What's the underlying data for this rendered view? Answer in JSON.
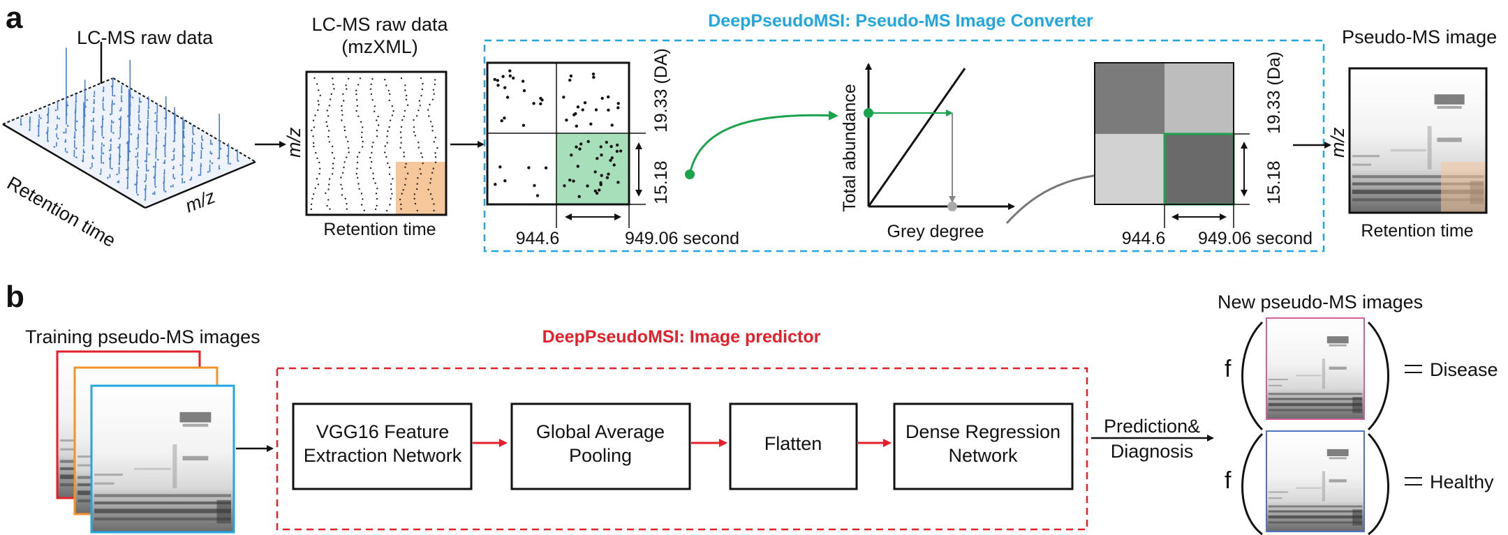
{
  "panel_a": {
    "letter": "a",
    "raw3d": {
      "title": "LC-MS raw data",
      "axis_retention": "Retention time",
      "axis_mz": "m/z"
    },
    "mzxml": {
      "title_line1": "LC-MS raw data",
      "title_line2": "(mzXML)",
      "axis_mz": "m/z",
      "axis_retention": "Retention time"
    },
    "converter": {
      "title": "DeepPseudoMSI: Pseudo-MS Image Converter",
      "grid_left": {
        "y_upper": "19.33 (DA)",
        "y_lower": "15.18",
        "x_left": "944.6",
        "x_right": "949.06 second"
      },
      "graph": {
        "ylabel": "Total abundance",
        "xlabel": "Grey degree"
      },
      "grid_right": {
        "y_upper": "19.33 (Da)",
        "y_lower": "15.18",
        "x_left": "944.6",
        "x_right": "949.06 second"
      }
    },
    "pseudo_image": {
      "title": "Pseudo-MS image",
      "axis_mz": "m/z",
      "axis_retention": "Retention time"
    }
  },
  "panel_b": {
    "letter": "b",
    "training_title": "Training pseudo-MS images",
    "predictor_title": "DeepPseudoMSI: Image predictor",
    "boxes": [
      {
        "line1": "VGG16 Feature",
        "line2": "Extraction Network"
      },
      {
        "line1": "Global Average",
        "line2": "Pooling"
      },
      {
        "line1": "Flatten",
        "line2": ""
      },
      {
        "line1": "Dense Regression",
        "line2": "Network"
      }
    ],
    "prediction_line1": "Prediction&",
    "prediction_line2": "Diagnosis",
    "new_images_title": "New pseudo-MS images",
    "f_symbol": "f",
    "outcomes": [
      {
        "label": "Disease"
      },
      {
        "label": "Healthy"
      }
    ]
  },
  "colors": {
    "blue_dash": "#22a6e0",
    "red_dash": "#e4202a",
    "green": "#19a34a",
    "orange_patch": "#f6c79a",
    "green_patch": "#a8dfbb",
    "training_frames": [
      "#e4202a",
      "#f2932a",
      "#22a6e0"
    ],
    "new_image_frames": [
      "#d0609e",
      "#4d74c4"
    ]
  }
}
